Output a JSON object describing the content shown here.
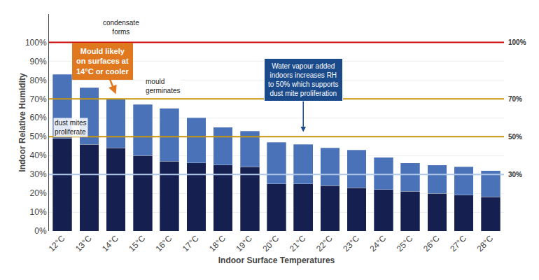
{
  "chart_data": {
    "type": "bar",
    "stacked": true,
    "categories": [
      "12°C",
      "13°C",
      "14°C",
      "15°C",
      "16°C",
      "17°C",
      "18°C",
      "19°C",
      "20°C",
      "21°C",
      "22°C",
      "23°C",
      "24°C",
      "25°C",
      "26°C",
      "27°C",
      "28°C"
    ],
    "series": [
      {
        "color": "#152050",
        "values": [
          49,
          46,
          44,
          40,
          37,
          36,
          35,
          34,
          25,
          25,
          24,
          23,
          22,
          21,
          20,
          19,
          18
        ]
      },
      {
        "color": "#4a72b8",
        "values": [
          34,
          30,
          26,
          27,
          28,
          24,
          20,
          19,
          22,
          21,
          20,
          20,
          17,
          15,
          15,
          15,
          14
        ]
      }
    ],
    "xlabel": "Indoor Surface Temperatures",
    "ylabel": "Indoor Relative Humidity",
    "ylim": [
      0,
      115
    ],
    "yticks": [
      {
        "value": 0,
        "label": "0%"
      },
      {
        "value": 10,
        "label": "10%"
      },
      {
        "value": 20,
        "label": "20%"
      },
      {
        "value": 30,
        "label": "30%"
      },
      {
        "value": 40,
        "label": "40%"
      },
      {
        "value": 50,
        "label": "50%"
      },
      {
        "value": 60,
        "label": "60%"
      },
      {
        "value": 70,
        "label": "70%"
      },
      {
        "value": 80,
        "label": "80%"
      },
      {
        "value": 90,
        "label": "90%"
      },
      {
        "value": 100,
        "label": "100%"
      }
    ],
    "grid": true,
    "reference_lines": [
      {
        "value": 100,
        "label": "100%",
        "color": "#cc0000"
      },
      {
        "value": 70,
        "label": "70%",
        "color": "#c8960a"
      },
      {
        "value": 50,
        "label": "50%",
        "color": "#c8960a"
      },
      {
        "value": 30,
        "label": "30%",
        "color": "#b0c8e8"
      }
    ],
    "annotations": [
      {
        "text": "condensate\nforms"
      },
      {
        "text": "mould\ngerminates"
      },
      {
        "text": "dust mites\nproliferate"
      },
      {
        "text": "Mould likely\non surfaces at\n14°C or cooler",
        "color": "#e07820"
      },
      {
        "text": "Water vapour added\nindoors increases RH\nto 50% which supports\ndust mite proliferation",
        "color": "#1a4a8a"
      }
    ]
  }
}
